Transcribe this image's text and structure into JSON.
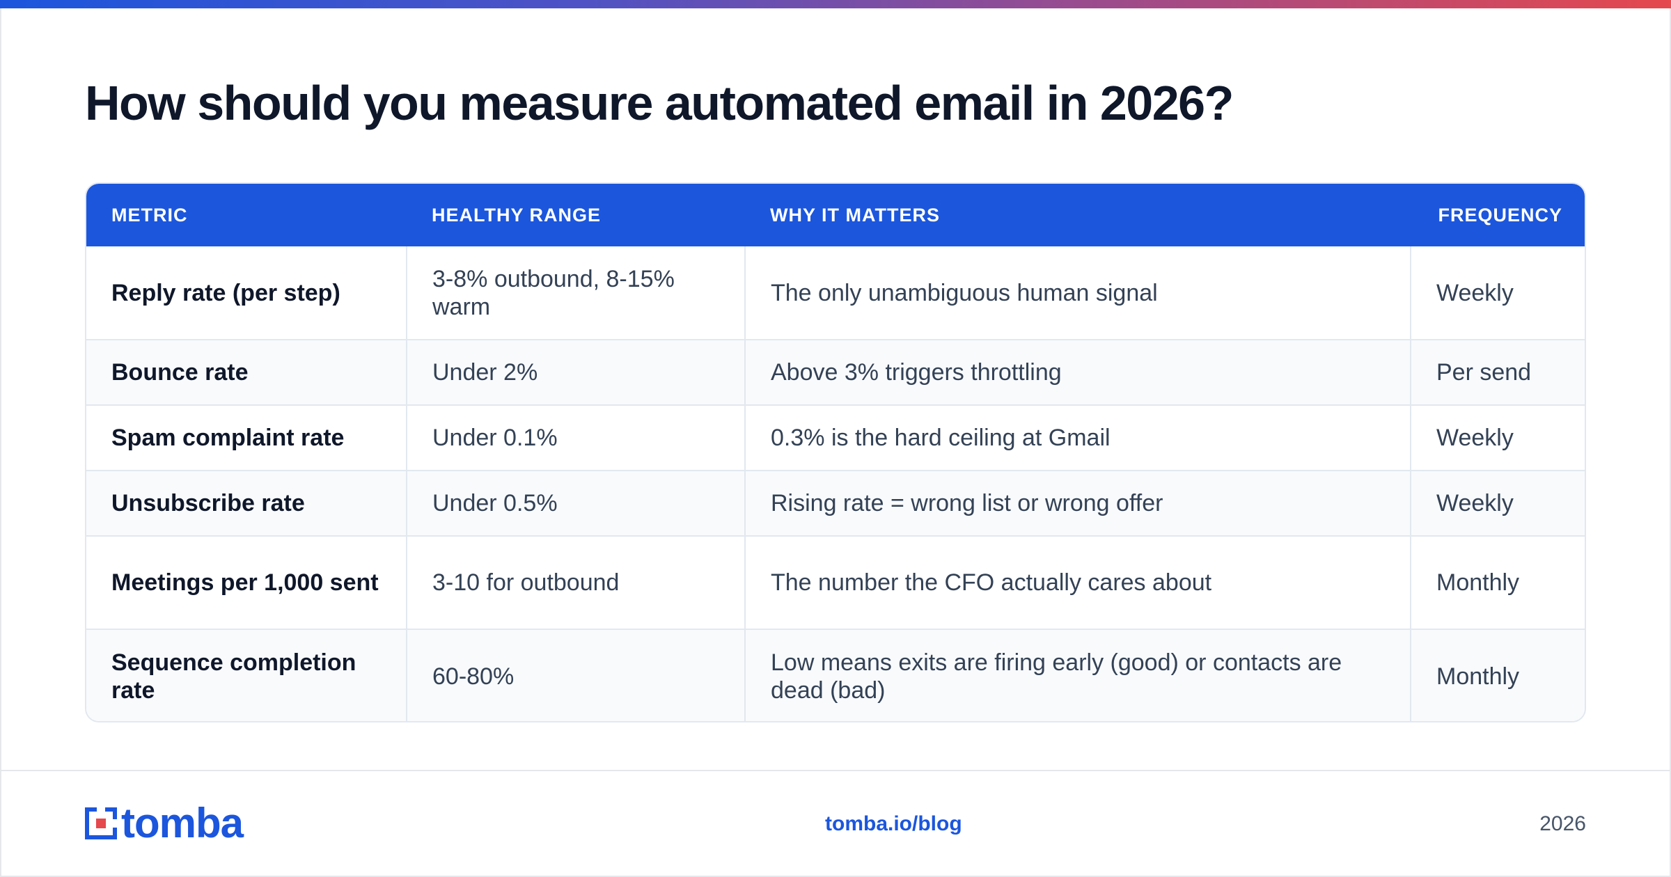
{
  "header": {
    "title": "How should you measure automated email in 2026?"
  },
  "table": {
    "columns": [
      "METRIC",
      "HEALTHY RANGE",
      "WHY IT MATTERS",
      "FREQUENCY"
    ],
    "rows": [
      [
        "Reply rate (per step)",
        "3-8% outbound, 8-15% warm",
        "The only unambiguous human signal",
        "Weekly"
      ],
      [
        "Bounce rate",
        "Under 2%",
        "Above 3% triggers throttling",
        "Per send"
      ],
      [
        "Spam complaint rate",
        "Under 0.1%",
        "0.3% is the hard ceiling at Gmail",
        "Weekly"
      ],
      [
        "Unsubscribe rate",
        "Under 0.5%",
        "Rising rate = wrong list or wrong offer",
        "Weekly"
      ],
      [
        "Meetings per 1,000 sent",
        "3-10 for outbound",
        "The number the CFO actually cares about",
        "Monthly"
      ],
      [
        "Sequence completion rate",
        "60-80%",
        "Low means exits are firing early (good) or contacts are dead (bad)",
        "Monthly"
      ]
    ]
  },
  "footer": {
    "logo_text": "tomba",
    "url": "tomba.io/blog",
    "year": "2026"
  },
  "colors": {
    "accent": "#1b56dd",
    "brand_red": "#e5484d",
    "title": "#0f172a",
    "body_text": "#334155"
  }
}
